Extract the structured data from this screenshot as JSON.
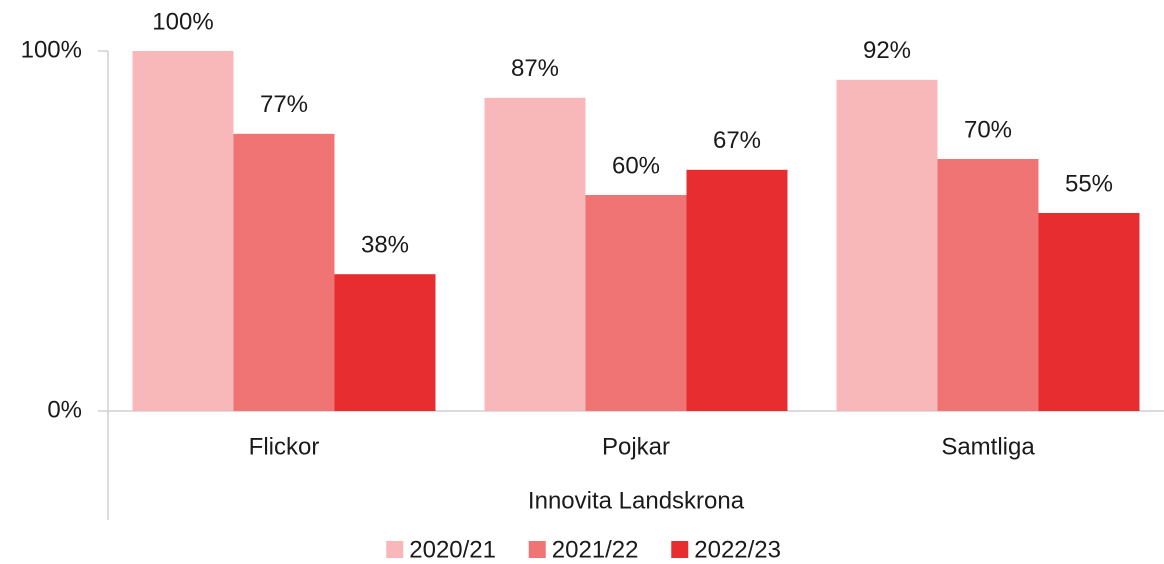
{
  "chart_data": {
    "type": "bar",
    "categories": [
      "Flickor",
      "Pojkar",
      "Samtliga"
    ],
    "x_label": "Innovita Landskrona",
    "series": [
      {
        "name": "2020/21",
        "color": "#f8b8b9",
        "values": [
          100,
          87,
          92
        ],
        "value_labels": [
          "100%",
          "87%",
          "92%"
        ]
      },
      {
        "name": "2021/22",
        "color": "#f07474",
        "values": [
          77,
          60,
          70
        ],
        "value_labels": [
          "77%",
          "60%",
          "70%"
        ]
      },
      {
        "name": "2022/23",
        "color": "#e82d30",
        "values": [
          38,
          67,
          55
        ],
        "value_labels": [
          "38%",
          "67%",
          "55%"
        ]
      }
    ],
    "ylim": [
      0,
      100
    ],
    "yticks": [
      {
        "value": 0,
        "label": "0%"
      },
      {
        "value": 100,
        "label": "100%"
      }
    ],
    "legend": "bottom"
  }
}
